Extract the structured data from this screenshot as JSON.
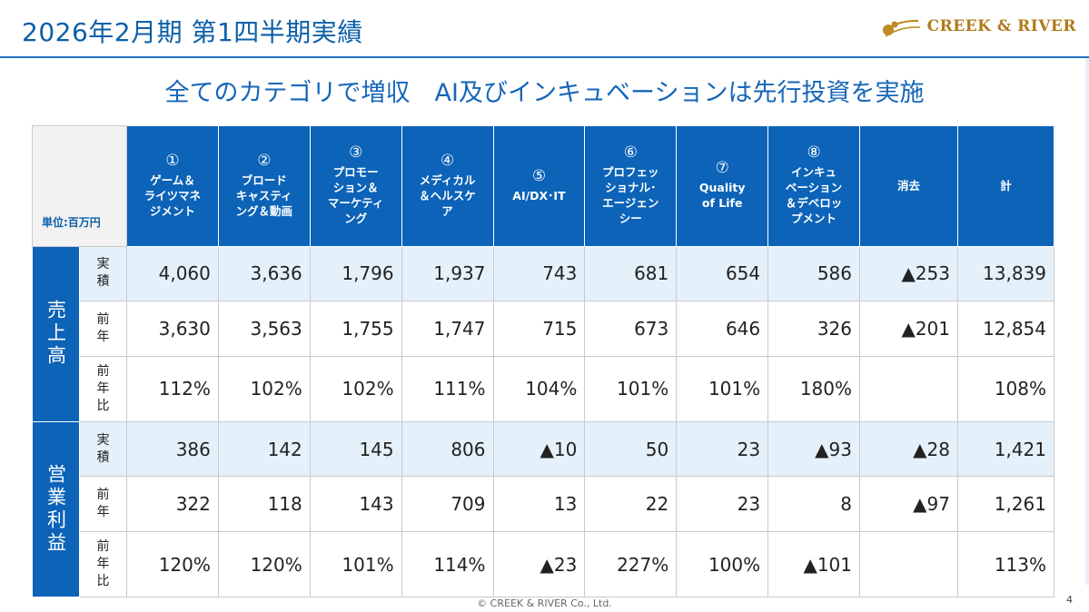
{
  "header": {
    "title": "2026年2月期 第1四半期実績",
    "logo_text": "CREEK & RIVER",
    "logo_icon": "creek-river-logo-icon"
  },
  "headline": "全てのカテゴリで増収　AI及びインキュベーションは先行投資を実施",
  "table": {
    "unit": "単位:百万円",
    "columns": [
      {
        "num": "①",
        "label": "ゲーム＆\nライツマネ\nジメント"
      },
      {
        "num": "②",
        "label": "ブロード\nキャスティ\nング＆動画"
      },
      {
        "num": "③",
        "label": "プロモー\nション＆\nマーケティ\nング"
      },
      {
        "num": "④",
        "label": "メディカル\n＆ヘルスケ\nア"
      },
      {
        "num": "⑤",
        "label": "AI/DX･IT"
      },
      {
        "num": "⑥",
        "label": "プロフェッ\nショナル･\nエージェン\nシー"
      },
      {
        "num": "⑦",
        "label": "Quality\nof Life"
      },
      {
        "num": "⑧",
        "label": "インキュ\nベーション\n＆デベロッ\nプメント"
      },
      {
        "num": "",
        "label": "消去"
      },
      {
        "num": "",
        "label": "計"
      }
    ],
    "groups": [
      {
        "name": "売上高",
        "rows": [
          {
            "label": "実\n積",
            "values": [
              "4,060",
              "3,636",
              "1,796",
              "1,937",
              "743",
              "681",
              "654",
              "586",
              "▲253",
              "13,839"
            ]
          },
          {
            "label": "前\n年",
            "values": [
              "3,630",
              "3,563",
              "1,755",
              "1,747",
              "715",
              "673",
              "646",
              "326",
              "▲201",
              "12,854"
            ]
          },
          {
            "label": "前\n年\n比",
            "values": [
              "112%",
              "102%",
              "102%",
              "111%",
              "104%",
              "101%",
              "101%",
              "180%",
              "",
              "108%"
            ]
          }
        ]
      },
      {
        "name": "営業利益",
        "rows": [
          {
            "label": "実\n積",
            "values": [
              "386",
              "142",
              "145",
              "806",
              "▲10",
              "50",
              "23",
              "▲93",
              "▲28",
              "1,421"
            ]
          },
          {
            "label": "前\n年",
            "values": [
              "322",
              "118",
              "143",
              "709",
              "13",
              "22",
              "23",
              "8",
              "▲97",
              "1,261"
            ]
          },
          {
            "label": "前\n年\n比",
            "values": [
              "120%",
              "120%",
              "101%",
              "114%",
              "▲23",
              "227%",
              "100%",
              "▲101",
              "",
              "113%"
            ]
          }
        ]
      }
    ]
  },
  "footer": {
    "copyright": "© CREEK & RIVER Co., Ltd.",
    "page": "4"
  }
}
